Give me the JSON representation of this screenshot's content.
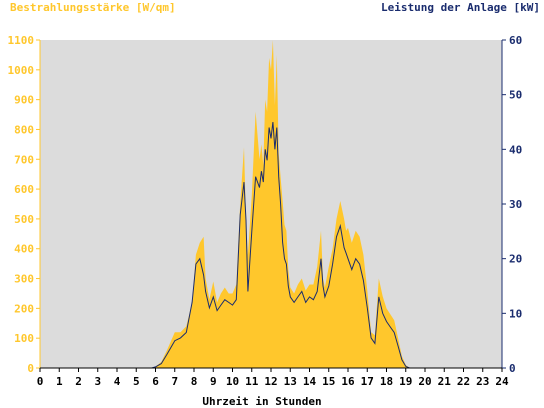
{
  "chart_data": {
    "type": "area",
    "ylabel": "Bestrahlungsstärke [W/qm]",
    "y2label": "Leistung der Anlage [kW]",
    "xlabel": "Uhrzeit in Stunden",
    "xlim": [
      0,
      24
    ],
    "ylim": [
      0,
      1100
    ],
    "y2lim": [
      0,
      60
    ],
    "x_ticks": [
      "0",
      "1",
      "2",
      "3",
      "4",
      "5",
      "6",
      "7",
      "8",
      "9",
      "10",
      "11",
      "12",
      "13",
      "14",
      "15",
      "16",
      "17",
      "18",
      "19",
      "20",
      "21",
      "22",
      "23",
      "24"
    ],
    "y_ticks": [
      "0",
      "100",
      "200",
      "300",
      "400",
      "500",
      "600",
      "700",
      "800",
      "900",
      "1000",
      "1100"
    ],
    "y2_ticks": [
      "0",
      "10",
      "20",
      "30",
      "40",
      "50",
      "60"
    ],
    "grid": false,
    "colors": {
      "irradiance": "#ffc72c",
      "power": "#1a2c6e",
      "plot_background": "#dcdcdc",
      "left_axis": "#ffc72c",
      "right_axis": "#1a2c6e"
    },
    "series": [
      {
        "axis": "left",
        "style": "area",
        "x": [
          0,
          5.8,
          6.0,
          6.3,
          6.6,
          7.0,
          7.3,
          7.6,
          7.9,
          8.1,
          8.3,
          8.5,
          8.6,
          8.8,
          9.0,
          9.2,
          9.4,
          9.6,
          9.8,
          10.0,
          10.2,
          10.4,
          10.6,
          10.7,
          10.8,
          11.0,
          11.2,
          11.4,
          11.5,
          11.6,
          11.7,
          11.8,
          11.9,
          12.0,
          12.1,
          12.2,
          12.3,
          12.4,
          12.5,
          12.6,
          12.7,
          12.8,
          12.9,
          13.0,
          13.2,
          13.4,
          13.6,
          13.8,
          14.0,
          14.2,
          14.4,
          14.6,
          14.7,
          14.8,
          15.0,
          15.2,
          15.4,
          15.6,
          15.8,
          15.9,
          16.0,
          16.2,
          16.4,
          16.6,
          16.8,
          17.0,
          17.2,
          17.4,
          17.6,
          17.8,
          18.0,
          18.2,
          18.4,
          18.6,
          18.8,
          19.0,
          19.2,
          24
        ],
        "values": [
          0,
          0,
          5,
          20,
          60,
          120,
          120,
          140,
          220,
          380,
          420,
          440,
          300,
          230,
          290,
          220,
          250,
          270,
          250,
          250,
          280,
          550,
          740,
          500,
          380,
          580,
          860,
          700,
          750,
          680,
          900,
          860,
          1040,
          1000,
          1100,
          880,
          1050,
          720,
          640,
          560,
          480,
          460,
          330,
          270,
          250,
          280,
          300,
          260,
          280,
          280,
          340,
          460,
          300,
          270,
          340,
          400,
          500,
          560,
          500,
          460,
          470,
          420,
          460,
          440,
          380,
          260,
          120,
          110,
          300,
          240,
          200,
          180,
          160,
          100,
          40,
          10,
          0,
          0
        ]
      },
      {
        "axis": "right",
        "style": "line",
        "x": [
          0,
          5.8,
          6.0,
          6.3,
          6.6,
          7.0,
          7.3,
          7.6,
          7.9,
          8.1,
          8.3,
          8.5,
          8.6,
          8.8,
          9.0,
          9.2,
          9.4,
          9.6,
          9.8,
          10.0,
          10.2,
          10.4,
          10.6,
          10.7,
          10.8,
          11.0,
          11.2,
          11.4,
          11.5,
          11.6,
          11.7,
          11.8,
          11.9,
          12.0,
          12.1,
          12.2,
          12.3,
          12.4,
          12.5,
          12.6,
          12.7,
          12.8,
          12.9,
          13.0,
          13.2,
          13.4,
          13.6,
          13.8,
          14.0,
          14.2,
          14.4,
          14.6,
          14.7,
          14.8,
          15.0,
          15.2,
          15.4,
          15.6,
          15.8,
          15.9,
          16.0,
          16.2,
          16.4,
          16.6,
          16.8,
          17.0,
          17.2,
          17.4,
          17.6,
          17.8,
          18.0,
          18.2,
          18.4,
          18.6,
          18.8,
          19.0,
          19.2,
          24
        ],
        "values": [
          0,
          0,
          0.2,
          0.8,
          2.5,
          5.0,
          5.5,
          6.5,
          12.0,
          19.0,
          20.0,
          17.0,
          14.0,
          11.0,
          13.0,
          10.5,
          11.5,
          12.5,
          12.0,
          11.5,
          12.5,
          28.0,
          34.0,
          27.0,
          14.0,
          25.0,
          35.0,
          33.0,
          36.0,
          34.0,
          40.0,
          38.0,
          44.0,
          42.0,
          45.0,
          40.0,
          44.0,
          35.0,
          30.0,
          23.0,
          20.0,
          19.0,
          15.0,
          13.0,
          12.0,
          13.0,
          14.0,
          12.0,
          13.0,
          12.5,
          14.0,
          20.0,
          15.0,
          13.0,
          15.0,
          19.0,
          24.0,
          26.0,
          22.0,
          21.0,
          20.0,
          18.0,
          20.0,
          19.0,
          16.0,
          11.0,
          5.5,
          4.5,
          13.0,
          10.0,
          8.5,
          7.5,
          6.5,
          4.0,
          1.5,
          0.3,
          0,
          0
        ]
      }
    ]
  }
}
